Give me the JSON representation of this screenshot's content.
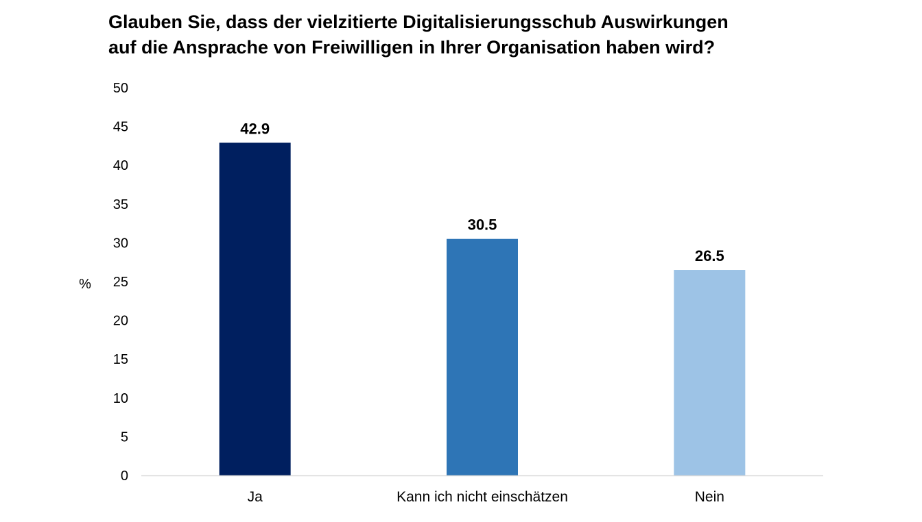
{
  "chart_data": {
    "type": "bar",
    "title_lines": [
      "Glauben Sie, dass der vielzitierte Digitalisierungsschub Auswirkungen",
      "auf die Ansprache von Freiwilligen in Ihrer Organisation haben wird?"
    ],
    "categories": [
      "Ja",
      "Kann ich nicht einschätzen",
      "Nein"
    ],
    "values": [
      42.9,
      30.5,
      26.5
    ],
    "data_labels": [
      "42.9",
      "30.5",
      "26.5"
    ],
    "colors": [
      "#001f5f",
      "#2e75b6",
      "#9dc3e6"
    ],
    "ylabel": "%",
    "ylim": [
      0,
      50
    ],
    "yticks": [
      0,
      5,
      10,
      15,
      20,
      25,
      30,
      35,
      40,
      45,
      50
    ],
    "grid": false,
    "legend": "none",
    "axis_color": "#d9d9d9"
  }
}
